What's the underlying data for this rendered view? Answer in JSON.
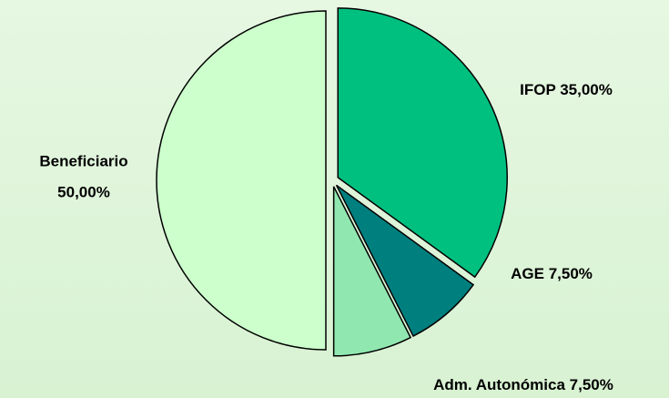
{
  "chart_data": {
    "type": "pie",
    "categories": [
      "IFOP",
      "AGE",
      "Adm. Autonómica",
      "Beneficiario"
    ],
    "values": [
      35,
      7.5,
      7.5,
      50
    ],
    "value_labels": [
      "35,00%",
      "7,50%",
      "7,50%",
      "50,00%"
    ],
    "colors": [
      "#00c080",
      "#007f7f",
      "#90e8b0",
      "#ccffcc"
    ]
  }
}
